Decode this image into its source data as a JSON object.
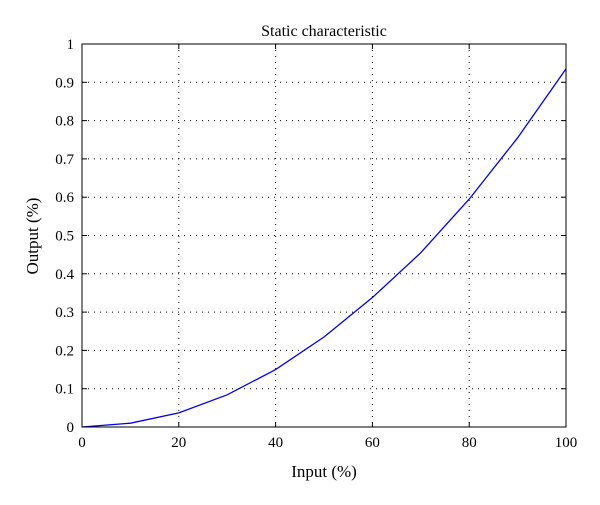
{
  "chart_data": {
    "type": "line",
    "title": "Static characteristic",
    "xlabel": "Input (%)",
    "ylabel": "Output (%)",
    "xlim": [
      0,
      100
    ],
    "ylim": [
      0,
      1
    ],
    "x_ticks": [
      "0",
      "20",
      "40",
      "60",
      "80",
      "100"
    ],
    "y_ticks": [
      "0",
      "0.1",
      "0.2",
      "0.3",
      "0.4",
      "0.5",
      "0.6",
      "0.7",
      "0.8",
      "0.9",
      "1"
    ],
    "grid": true,
    "series": [
      {
        "color": "#0000ee",
        "x": [
          0,
          10,
          20,
          30,
          40,
          50,
          60,
          70,
          80,
          90,
          100
        ],
        "y": [
          0,
          0.01,
          0.037,
          0.084,
          0.15,
          0.235,
          0.338,
          0.455,
          0.595,
          0.755,
          0.935
        ]
      }
    ]
  }
}
